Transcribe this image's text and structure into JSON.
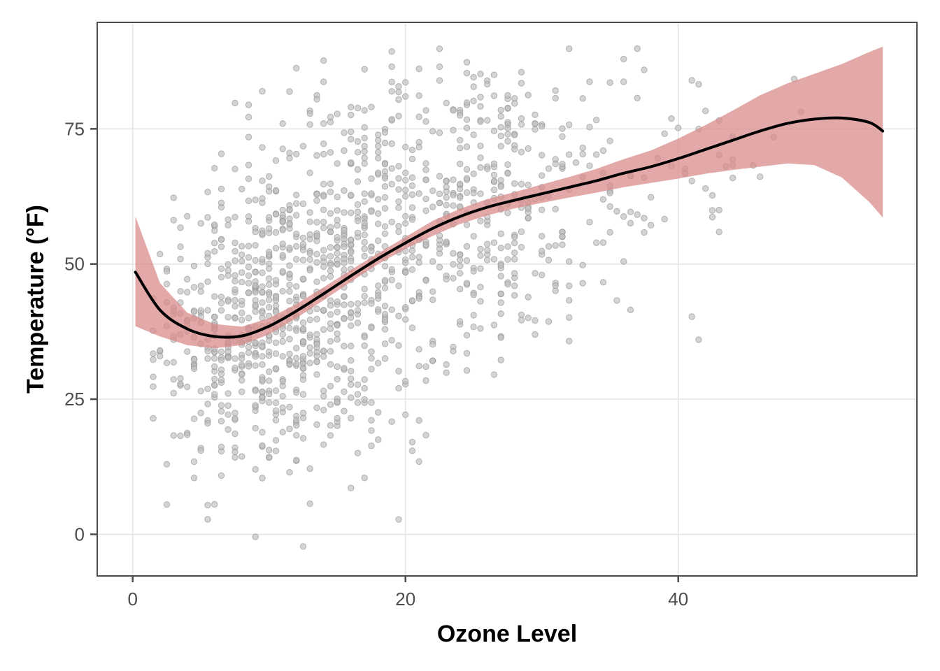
{
  "chart_data": {
    "type": "scatter",
    "title": "",
    "xlabel": "Ozone Level",
    "ylabel": "Temperature (°F)",
    "xlim": [
      -2.6,
      57.5
    ],
    "ylim": [
      -7.7,
      94.7
    ],
    "grid": true,
    "legend": "none",
    "x_ticks": [
      0,
      20,
      40
    ],
    "x_tick_labels": [
      "0",
      "20",
      "40"
    ],
    "y_ticks": [
      0,
      25,
      50,
      75
    ],
    "y_tick_labels": [
      "0",
      "25",
      "50",
      "75"
    ],
    "colors": {
      "points_fill": "#bdbdbd",
      "points_stroke": "#8c8c8c",
      "smooth_line": "#000000",
      "ci_band": "#d98c8c",
      "grid": "#e3e3e3",
      "panel_border": "#4d4d4d"
    },
    "scatter_summary": {
      "n_points": 1330,
      "x_range": [
        0,
        55
      ],
      "y_range": [
        -3,
        90
      ],
      "note_clusters": [
        {
          "x_mean": 9,
          "x_sd": 4,
          "y_mean": 38,
          "y_sd": 14,
          "n": 520
        },
        {
          "x_mean": 16,
          "x_sd": 4,
          "y_mean": 50,
          "y_sd": 18,
          "n": 380
        },
        {
          "x_mean": 25,
          "x_sd": 5,
          "y_mean": 62,
          "y_sd": 14,
          "n": 330
        },
        {
          "x_mean": 37,
          "x_sd": 6,
          "y_mean": 68,
          "y_sd": 12,
          "n": 100
        }
      ]
    },
    "smooth": {
      "method": "loess",
      "x": [
        0.2,
        2,
        4,
        6,
        8,
        10,
        12,
        14,
        16,
        18,
        20,
        22,
        24,
        26,
        28,
        30,
        32,
        34,
        36,
        38,
        40,
        42,
        44,
        46,
        48,
        50,
        52,
        54,
        55
      ],
      "y": [
        48.5,
        41.5,
        38.0,
        36.6,
        36.7,
        38.5,
        41.3,
        44.5,
        47.8,
        51.0,
        53.9,
        56.6,
        58.8,
        60.5,
        61.8,
        63.0,
        64.2,
        65.4,
        66.8,
        68.0,
        69.5,
        71.2,
        72.9,
        74.6,
        76.0,
        76.8,
        77.0,
        76.2,
        74.6
      ],
      "ci_low": [
        38.5,
        36.6,
        35.0,
        34.4,
        35.0,
        37.0,
        40.0,
        43.3,
        46.7,
        50.0,
        52.8,
        55.2,
        57.4,
        59.0,
        60.3,
        61.3,
        62.3,
        63.2,
        64.2,
        65.0,
        65.8,
        66.7,
        67.4,
        68.0,
        68.6,
        68.3,
        66.0,
        61.5,
        58.6
      ],
      "ci_high": [
        58.8,
        46.5,
        41.0,
        38.9,
        38.4,
        40.0,
        42.6,
        45.7,
        48.9,
        52.0,
        55.0,
        58.0,
        60.2,
        62.0,
        63.3,
        64.7,
        66.1,
        67.6,
        69.4,
        71.0,
        73.2,
        75.7,
        78.4,
        81.2,
        83.4,
        85.2,
        87.0,
        89.2,
        90.2
      ]
    }
  }
}
